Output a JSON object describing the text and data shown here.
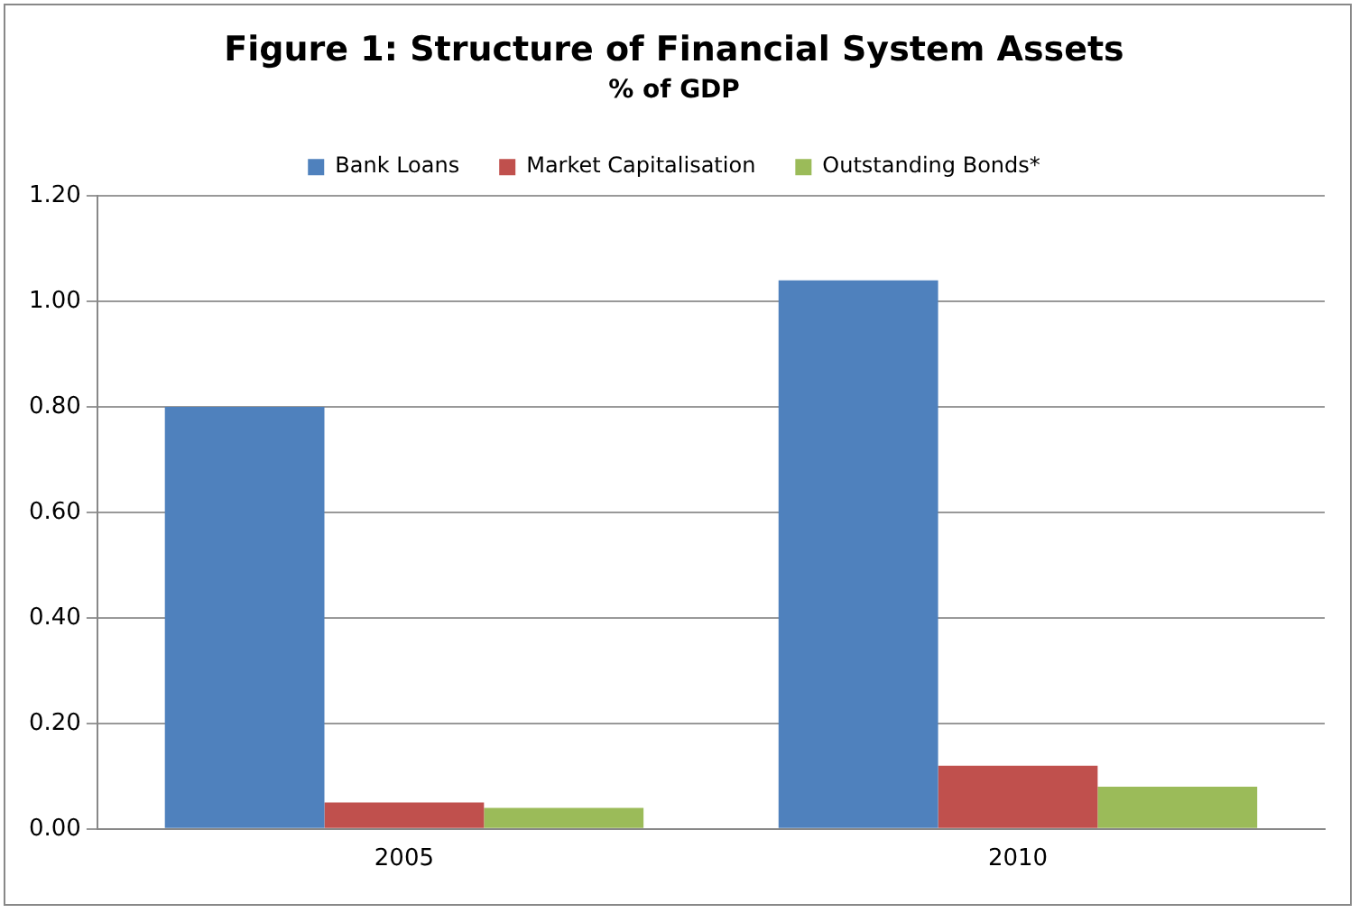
{
  "chart_data": {
    "type": "bar",
    "title": "Figure 1: Structure of Financial System Assets",
    "subtitle": "% of GDP",
    "categories": [
      "2005",
      "2010"
    ],
    "series": [
      {
        "name": "Bank Loans",
        "color": "#4f81bd",
        "values": [
          0.8,
          1.04
        ]
      },
      {
        "name": "Market Capitalisation",
        "color": "#c0504d",
        "values": [
          0.05,
          0.12
        ]
      },
      {
        "name": "Outstanding Bonds*",
        "color": "#9bbb59",
        "values": [
          0.04,
          0.08
        ]
      }
    ],
    "ylim": [
      0,
      1.2
    ],
    "yticks": [
      {
        "value": 0,
        "label": "0.00"
      },
      {
        "value": 0.2,
        "label": "0.20"
      },
      {
        "value": 0.4,
        "label": "0.40"
      },
      {
        "value": 0.6,
        "label": "0.60"
      },
      {
        "value": 0.8,
        "label": "0.80"
      },
      {
        "value": 1.0,
        "label": "1.00"
      },
      {
        "value": 1.2,
        "label": "1.20"
      }
    ],
    "grid": "y",
    "legend": "top"
  }
}
